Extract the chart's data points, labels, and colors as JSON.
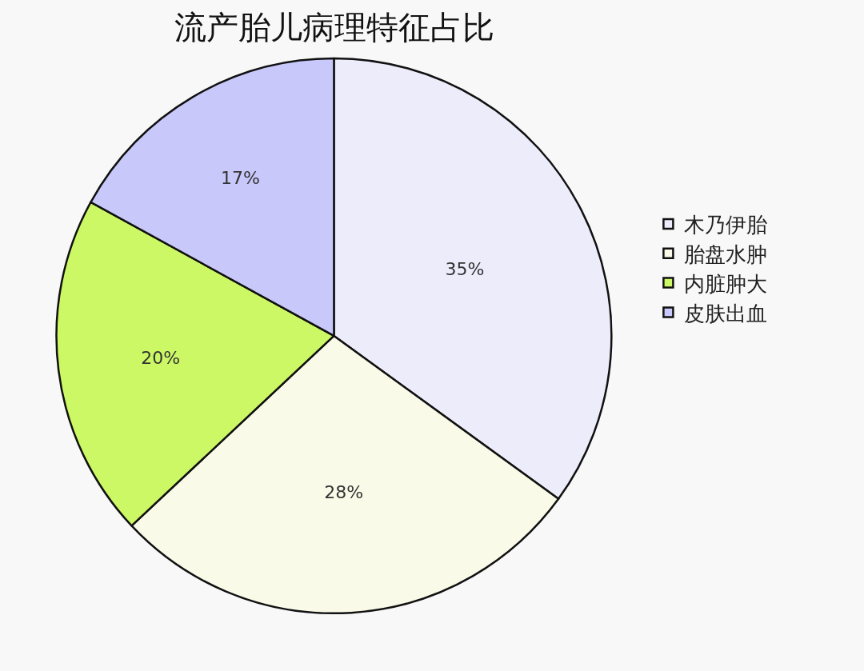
{
  "chart_data": {
    "type": "pie",
    "title": "流产胎儿病理特征占比",
    "categories": [
      "木乃伊胎",
      "胎盘水肿",
      "内脏肿大",
      "皮肤出血"
    ],
    "values": [
      35,
      28,
      20,
      17
    ],
    "value_labels": [
      "35%",
      "28%",
      "20%",
      "17%"
    ],
    "colors": [
      "#ececfb",
      "#fafae8",
      "#ccf866",
      "#c8c8fa"
    ],
    "legend": "right"
  }
}
